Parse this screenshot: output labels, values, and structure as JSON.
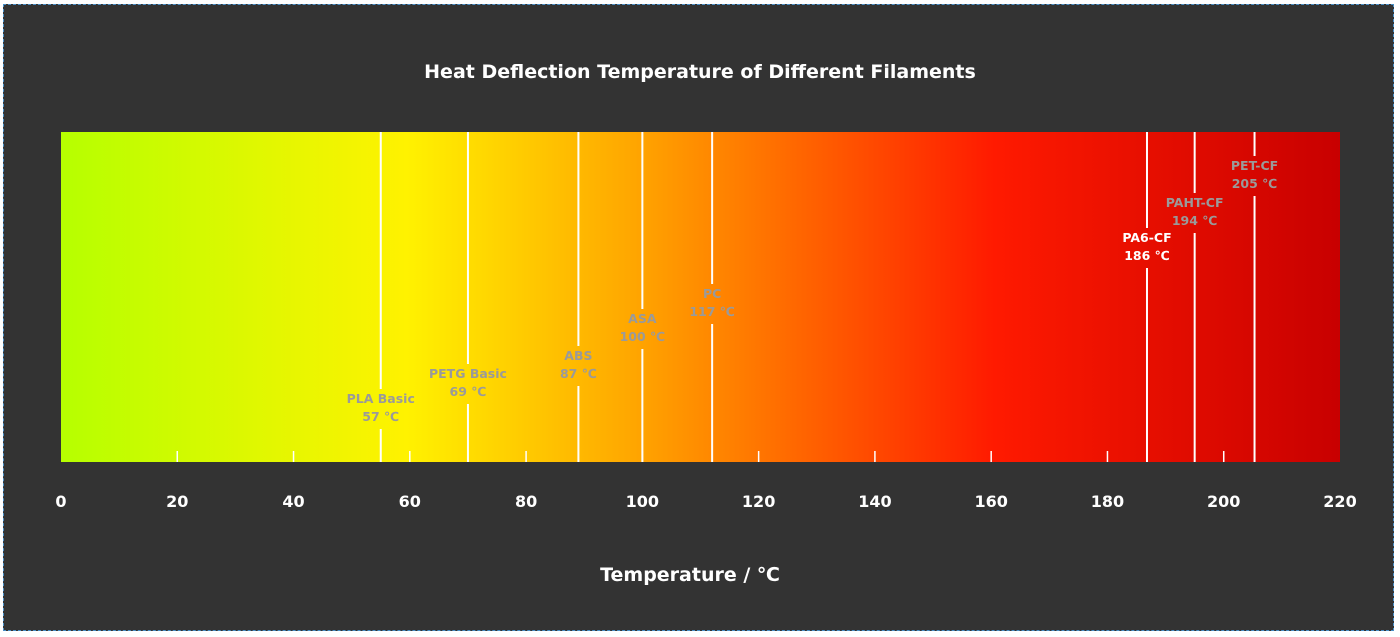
{
  "chart_data": {
    "type": "gradient_scale",
    "title": "Heat Deflection Temperature of Different Filaments",
    "xlabel": "Temperature / ℃",
    "xlim": [
      0,
      220
    ],
    "x_ticks": [
      0,
      20,
      40,
      60,
      80,
      100,
      120,
      140,
      160,
      180,
      200,
      220
    ],
    "gradient_colors": [
      "#b6ff00",
      "#fff200",
      "#ffa500",
      "#ff1a00",
      "#c80000"
    ],
    "markers": [
      {
        "name": "PLA Basic",
        "value": 57,
        "label": "57 ℃",
        "line_at": 55,
        "label_color": "#9a9a9a"
      },
      {
        "name": "PETG Basic",
        "value": 69,
        "label": "69 ℃",
        "line_at": 70,
        "label_color": "#9a9a9a"
      },
      {
        "name": "ABS",
        "value": 87,
        "label": "87 ℃",
        "line_at": 89,
        "label_color": "#9a9a9a"
      },
      {
        "name": "ASA",
        "value": 100,
        "label": "100 ℃",
        "line_at": 100,
        "label_color": "#9a9a9a"
      },
      {
        "name": "PC",
        "value": 117,
        "label": "117 ℃",
        "line_at": 112,
        "label_color": "#9a9a9a"
      },
      {
        "name": "PA6-CF",
        "value": 186,
        "label": "186 ℃",
        "line_at": 186.8,
        "label_color": "#ffffff"
      },
      {
        "name": "PAHT-CF",
        "value": 194,
        "label": "194 ℃",
        "line_at": 195,
        "label_color": "#9a9a9a"
      },
      {
        "name": "PET-CF",
        "value": 205,
        "label": "205 ℃",
        "line_at": 205.3,
        "label_color": "#9a9a9a"
      }
    ]
  }
}
